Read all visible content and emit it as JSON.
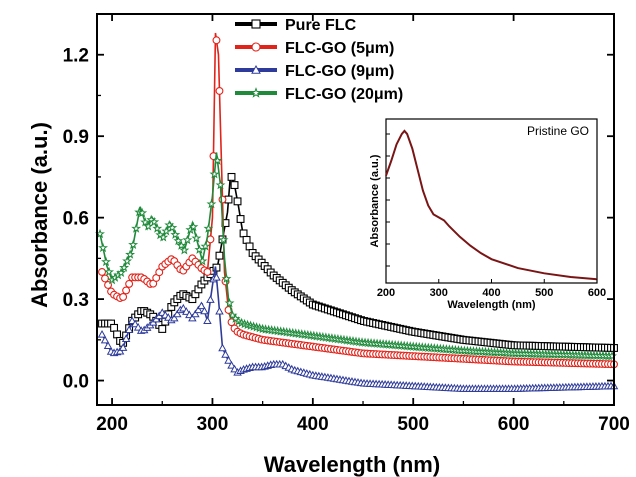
{
  "chart_data": [
    {
      "type": "line",
      "title": "",
      "xlabel": "Wavelength (nm)",
      "ylabel": "Absorbance (a.u.)",
      "xlim": [
        185,
        700
      ],
      "ylim": [
        -0.09,
        1.35
      ],
      "xticks": [
        200,
        300,
        400,
        500,
        600,
        700
      ],
      "yticks": [
        0.0,
        0.3,
        0.6,
        0.9,
        1.2
      ],
      "xtick_labels": [
        "200",
        "300",
        "400",
        "500",
        "600",
        "700"
      ],
      "ytick_labels": [
        "0.0",
        "0.3",
        "0.6",
        "0.9",
        "1.2"
      ],
      "grid": false,
      "legend_position": "top-center",
      "series": [
        {
          "name": "Pure FLC",
          "color": "#000000",
          "marker": "square",
          "x": [
            190,
            200,
            210,
            220,
            230,
            240,
            250,
            260,
            270,
            280,
            290,
            300,
            305,
            310,
            315,
            318,
            322,
            326,
            330,
            340,
            350,
            360,
            380,
            400,
            450,
            500,
            550,
            600,
            650,
            700
          ],
          "y": [
            0.21,
            0.21,
            0.13,
            0.22,
            0.26,
            0.24,
            0.19,
            0.28,
            0.32,
            0.3,
            0.36,
            0.4,
            0.42,
            0.52,
            0.62,
            0.76,
            0.72,
            0.64,
            0.55,
            0.47,
            0.43,
            0.39,
            0.33,
            0.28,
            0.22,
            0.18,
            0.15,
            0.13,
            0.125,
            0.12
          ]
        },
        {
          "name": "FLC-GO (5μm)",
          "color": "#e2231a",
          "marker": "circle",
          "x": [
            190,
            200,
            210,
            220,
            230,
            240,
            250,
            260,
            270,
            280,
            290,
            295,
            300,
            303,
            306,
            309,
            312,
            316,
            320,
            325,
            330,
            340,
            350,
            400,
            450,
            500,
            550,
            600,
            650,
            700
          ],
          "y": [
            0.4,
            0.32,
            0.3,
            0.38,
            0.38,
            0.35,
            0.42,
            0.45,
            0.4,
            0.45,
            0.41,
            0.4,
            0.6,
            1.28,
            1.2,
            0.8,
            0.4,
            0.26,
            0.2,
            0.18,
            0.17,
            0.16,
            0.15,
            0.125,
            0.1,
            0.09,
            0.08,
            0.07,
            0.065,
            0.06
          ]
        },
        {
          "name": "FLC-GO (9μm)",
          "color": "#2e3b9a",
          "marker": "triangle",
          "x": [
            190,
            200,
            210,
            220,
            230,
            240,
            250,
            260,
            270,
            280,
            290,
            295,
            300,
            303,
            306,
            310,
            315,
            320,
            325,
            330,
            340,
            350,
            360,
            370,
            380,
            400,
            450,
            500,
            550,
            600,
            650,
            700
          ],
          "y": [
            0.17,
            0.1,
            0.11,
            0.22,
            0.18,
            0.21,
            0.25,
            0.22,
            0.27,
            0.23,
            0.28,
            0.22,
            0.35,
            0.42,
            0.3,
            0.12,
            0.08,
            0.05,
            0.03,
            0.04,
            0.05,
            0.05,
            0.06,
            0.06,
            0.04,
            0.02,
            -0.01,
            -0.02,
            -0.03,
            -0.03,
            -0.025,
            -0.02
          ]
        },
        {
          "name": "FLC-GO (20μm)",
          "color": "#1f8a3a",
          "marker": "star",
          "x": [
            188,
            195,
            200,
            210,
            220,
            228,
            235,
            240,
            250,
            258,
            265,
            272,
            280,
            290,
            295,
            300,
            304,
            308,
            312,
            316,
            320,
            325,
            330,
            340,
            350,
            400,
            450,
            500,
            550,
            600,
            650,
            700
          ],
          "y": [
            0.54,
            0.42,
            0.37,
            0.4,
            0.48,
            0.64,
            0.56,
            0.6,
            0.52,
            0.58,
            0.52,
            0.48,
            0.58,
            0.44,
            0.53,
            0.68,
            0.84,
            0.72,
            0.45,
            0.3,
            0.24,
            0.22,
            0.21,
            0.2,
            0.19,
            0.165,
            0.14,
            0.125,
            0.11,
            0.1,
            0.095,
            0.09
          ]
        }
      ]
    },
    {
      "type": "line",
      "title": "Pristine GO",
      "xlabel": "Wavelength (nm)",
      "ylabel": "Absorbance (a.u.)",
      "xlim": [
        200,
        600
      ],
      "ylim": [
        0,
        1.1
      ],
      "xticks": [
        200,
        300,
        400,
        500,
        600
      ],
      "xtick_labels": [
        "200",
        "300",
        "400",
        "500",
        "600"
      ],
      "grid": false,
      "legend_position": "none",
      "series": [
        {
          "color": "#7a1515",
          "x": [
            200,
            210,
            220,
            230,
            235,
            240,
            250,
            260,
            270,
            280,
            290,
            300,
            310,
            320,
            340,
            360,
            380,
            400,
            450,
            500,
            550,
            600
          ],
          "y": [
            0.72,
            0.82,
            0.93,
            1.0,
            1.02,
            1.0,
            0.9,
            0.76,
            0.62,
            0.52,
            0.46,
            0.44,
            0.42,
            0.38,
            0.31,
            0.25,
            0.2,
            0.16,
            0.1,
            0.065,
            0.04,
            0.025
          ]
        }
      ]
    }
  ]
}
